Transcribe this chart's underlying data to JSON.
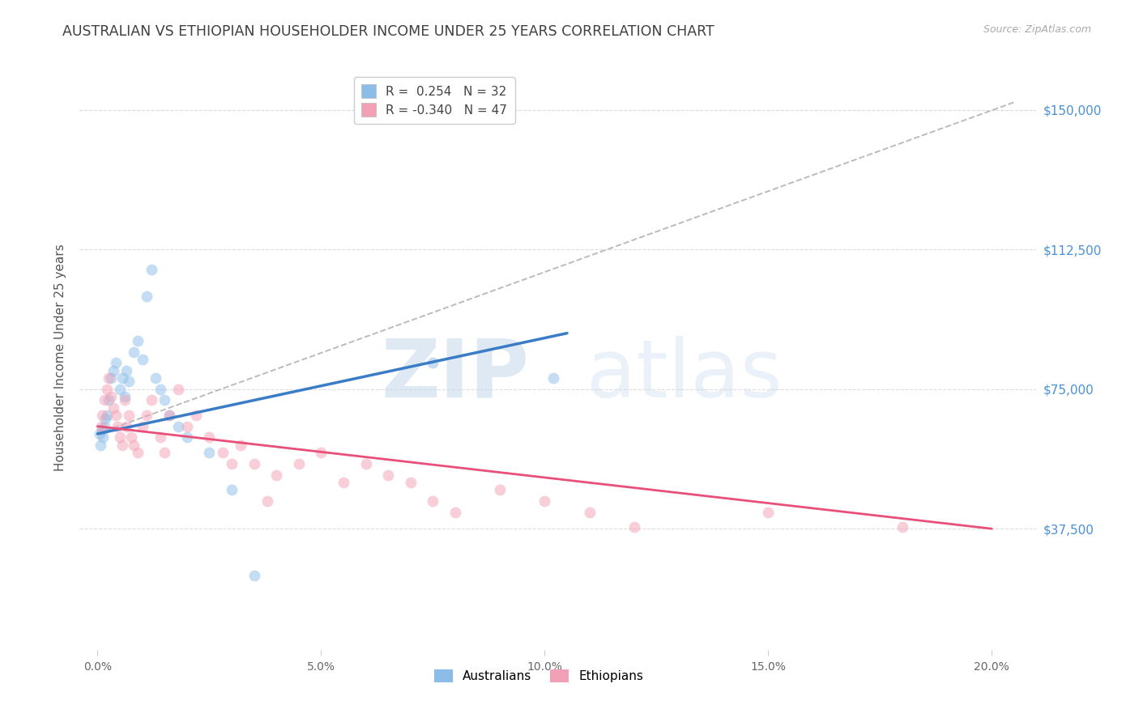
{
  "title": "AUSTRALIAN VS ETHIOPIAN HOUSEHOLDER INCOME UNDER 25 YEARS CORRELATION CHART",
  "source": "Source: ZipAtlas.com",
  "ylabel": "Householder Income Under 25 years",
  "ytick_labels": [
    "$37,500",
    "$75,000",
    "$112,500",
    "$150,000"
  ],
  "ytick_vals": [
    37500,
    75000,
    112500,
    150000
  ],
  "xtick_labels": [
    "0.0%",
    "5.0%",
    "10.0%",
    "15.0%",
    "20.0%"
  ],
  "xtick_vals": [
    0.0,
    5.0,
    10.0,
    15.0,
    20.0
  ],
  "xlim": [
    -0.4,
    21.0
  ],
  "ylim": [
    5000,
    162000
  ],
  "legend1_label": "R =  0.254   N = 32",
  "legend2_label": "R = -0.340   N = 47",
  "legend1_r": " 0.254",
  "legend1_n": "32",
  "legend2_r": "-0.340",
  "legend2_n": "47",
  "australians_x": [
    0.05,
    0.07,
    0.1,
    0.12,
    0.15,
    0.18,
    0.2,
    0.25,
    0.3,
    0.35,
    0.4,
    0.5,
    0.55,
    0.6,
    0.65,
    0.7,
    0.8,
    0.9,
    1.0,
    1.1,
    1.2,
    1.3,
    1.4,
    1.5,
    1.6,
    1.8,
    2.0,
    2.5,
    3.0,
    3.5,
    7.5,
    10.2
  ],
  "australians_y": [
    63000,
    60000,
    64000,
    62000,
    65000,
    67000,
    68000,
    72000,
    78000,
    80000,
    82000,
    75000,
    78000,
    73000,
    80000,
    77000,
    85000,
    88000,
    83000,
    100000,
    107000,
    78000,
    75000,
    72000,
    68000,
    65000,
    62000,
    58000,
    48000,
    25000,
    82000,
    78000
  ],
  "ethiopians_x": [
    0.08,
    0.1,
    0.15,
    0.2,
    0.25,
    0.3,
    0.35,
    0.4,
    0.45,
    0.5,
    0.55,
    0.6,
    0.65,
    0.7,
    0.75,
    0.8,
    0.9,
    1.0,
    1.1,
    1.2,
    1.4,
    1.5,
    1.6,
    1.8,
    2.0,
    2.2,
    2.5,
    2.8,
    3.0,
    3.2,
    3.5,
    3.8,
    4.0,
    4.5,
    5.0,
    5.5,
    6.0,
    6.5,
    7.0,
    7.5,
    8.0,
    9.0,
    10.0,
    11.0,
    12.0,
    15.0,
    18.0
  ],
  "ethiopians_y": [
    65000,
    68000,
    72000,
    75000,
    78000,
    73000,
    70000,
    68000,
    65000,
    62000,
    60000,
    72000,
    65000,
    68000,
    62000,
    60000,
    58000,
    65000,
    68000,
    72000,
    62000,
    58000,
    68000,
    75000,
    65000,
    68000,
    62000,
    58000,
    55000,
    60000,
    55000,
    45000,
    52000,
    55000,
    58000,
    50000,
    55000,
    52000,
    50000,
    45000,
    42000,
    48000,
    45000,
    42000,
    38000,
    42000,
    38000
  ],
  "blue_trend_x0": 0.0,
  "blue_trend_x1": 10.5,
  "blue_trend_y0": 63000,
  "blue_trend_y1": 90000,
  "pink_trend_x0": 0.0,
  "pink_trend_x1": 20.0,
  "pink_trend_y0": 65000,
  "pink_trend_y1": 37500,
  "dashed_x0": 0.0,
  "dashed_x1": 20.5,
  "dashed_y0": 63000,
  "dashed_y1": 152000,
  "dot_color_blue": "#8BBDE8",
  "dot_color_pink": "#F2A0B5",
  "line_color_blue": "#3A7CC5",
  "line_color_pink": "#E8507A",
  "line_color_dashed": "#BBBBBB",
  "bg_color": "#FFFFFF",
  "grid_color": "#DDDDDD",
  "title_color": "#404040",
  "source_color": "#AAAAAA",
  "ylabel_color": "#555555",
  "ytick_right_color": "#4A90D9",
  "xtick_color": "#666666",
  "dot_size": 100,
  "dot_alpha": 0.5,
  "watermark_zip_color": "#C5D8EC",
  "watermark_atlas_color": "#C5D8EC",
  "title_fontsize": 12.5,
  "source_fontsize": 9,
  "legend_fontsize": 11
}
